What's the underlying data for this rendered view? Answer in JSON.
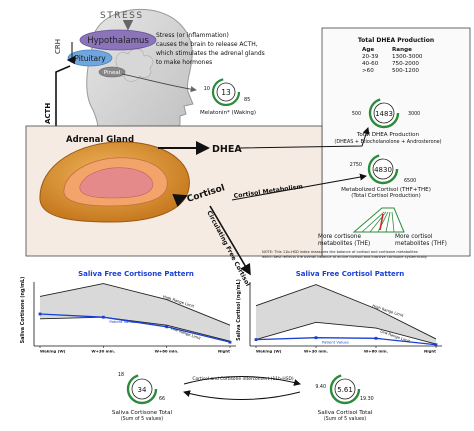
{
  "brain": {
    "stress": "STRESS",
    "hypothalamus": "Hypothalamus",
    "pituitary": "Pituitary",
    "pineal": "Pineal",
    "crh": "CRH",
    "acth": "ACTH",
    "description": [
      "Stress (or inflammation)",
      "causes the brain to release ACTH,",
      "which stimulates the adrenal glands",
      "to make hormones"
    ],
    "melatonin_gauge": {
      "value": "13",
      "low": "10",
      "high": "85",
      "label": "Melatonin* (Waking)"
    }
  },
  "dhea_table": {
    "title": "Total DHEA Production",
    "headers": [
      "Age",
      "Range"
    ],
    "rows": [
      [
        "20-39",
        "1300-3000"
      ],
      [
        "40-60",
        "750-2000"
      ],
      [
        ">60",
        "500-1200"
      ]
    ]
  },
  "dhea_gauge": {
    "value": "1483",
    "low": "500",
    "high": "3000",
    "label": "Total DHEA Production",
    "sublabel": "(DHEAS + Etiocholanolone + Androsterone)"
  },
  "adrenal": {
    "gland_label": "Adrenal Gland",
    "dhea_label": "DHEA",
    "cortisol_label": "Cortisol",
    "cortisol_metabolism": "Cortisol Metabolism",
    "circulating": "Circulating Free Cortisol"
  },
  "metabolized_gauge": {
    "value": "4830",
    "low": "2750",
    "high": "6500",
    "label": "Metabolized Cortisol (THF+THE)",
    "sublabel": "(Total Cortisol Production)"
  },
  "balance": {
    "left_label": [
      "More cortisone",
      "metabolites (THE)"
    ],
    "right_label": [
      "More cortisol",
      "metabolites (THF)"
    ]
  },
  "note": [
    "NOTE: This 11b-HSD index measures the balance of cortisol and cortisone metabolites",
    "which best reflects the overall balance of active cortisol and inactive cortisone systemically"
  ],
  "chart_data": [
    {
      "type": "line",
      "title": "Saliva Free Cortisone Pattern",
      "ylabel": "Saliva Cortisone (ng/mL)",
      "categories": [
        "Waking (W)",
        "W+30 min.",
        "W+60 min.",
        "Night"
      ],
      "series": [
        {
          "name": "High Range Limit",
          "values": [
            15.5,
            19.5,
            14.5,
            6.5
          ]
        },
        {
          "name": "Low Range Limit",
          "values": [
            8.5,
            9.0,
            6.5,
            1.5
          ]
        },
        {
          "name": "Patient Values",
          "values": [
            10.0,
            9.0,
            6.0,
            1.2
          ]
        }
      ],
      "ylim": [
        0,
        20
      ]
    },
    {
      "type": "line",
      "title": "Saliva Free Cortisol Pattern",
      "ylabel": "Saliva Cortisol (ng/mL)",
      "categories": [
        "Waking (W)",
        "W+30 min.",
        "W+60 min.",
        "Night"
      ],
      "series": [
        {
          "name": "High Range Limit",
          "values": [
            6.3,
            9.6,
            5.8,
            1.1
          ]
        },
        {
          "name": "Low Range Limit",
          "values": [
            1.0,
            3.7,
            2.8,
            0.3
          ]
        },
        {
          "name": "Patient Values",
          "values": [
            1.0,
            1.3,
            1.2,
            0.2
          ]
        }
      ],
      "ylim": [
        0,
        10
      ]
    }
  ],
  "bottom": {
    "cortisone_gauge": {
      "value": "34",
      "low": "18",
      "high": "66",
      "label": "Saliva Cortisone Total",
      "sublabel": "(Sum of 5 values)"
    },
    "cortisol_gauge": {
      "value": "5.61",
      "low": "9.40",
      "high": "19.30",
      "label": "Saliva Cortisol Total",
      "sublabel": "(Sum of 5 values)"
    },
    "conversion_label": "Cortisol and Cortisone interconvert (11b-HSD)"
  }
}
